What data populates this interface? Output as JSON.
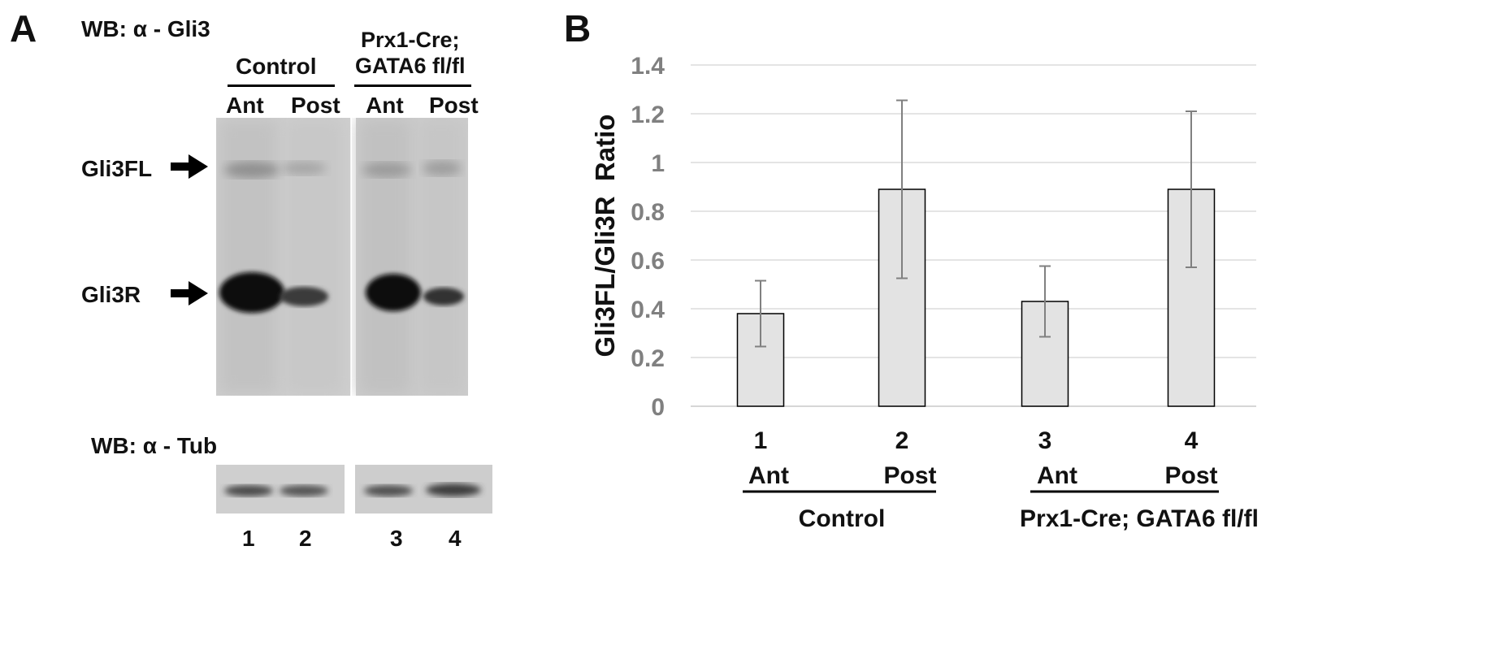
{
  "panel_a": {
    "letter": "A",
    "wb_gli3": "WB: α - Gli3",
    "group_control": "Control",
    "group_mutant_line1": "Prx1-Cre;",
    "group_mutant_line2": "GATA6 fl/fl",
    "lanes_top": [
      "Ant",
      "Post",
      "Ant",
      "Post"
    ],
    "band_fl": "Gli3FL",
    "band_r": "Gli3R",
    "wb_tub": "WB: α - Tub",
    "lane_numbers": [
      "1",
      "2",
      "3",
      "4"
    ]
  },
  "panel_b": {
    "letter": "B"
  },
  "chart_data": {
    "type": "bar",
    "ylabel": "Gli3FL/Gli3R  Ratio",
    "ylim": [
      0,
      1.4
    ],
    "yticks": [
      "0",
      "0.2",
      "0.4",
      "0.6",
      "0.8",
      "1",
      "1.2",
      "1.4"
    ],
    "grid": true,
    "categories": [
      "1",
      "2",
      "3",
      "4"
    ],
    "sublabels": [
      "Ant",
      "Post",
      "Ant",
      "Post"
    ],
    "groups": [
      {
        "label": "Control",
        "members": [
          0,
          1
        ]
      },
      {
        "label": "Prx1-Cre; GATA6 fl/fl",
        "members": [
          2,
          3
        ]
      }
    ],
    "values": [
      0.38,
      0.89,
      0.43,
      0.89
    ],
    "errors": [
      0.135,
      0.365,
      0.145,
      0.32
    ],
    "bar_color": "#e3e3e3"
  }
}
